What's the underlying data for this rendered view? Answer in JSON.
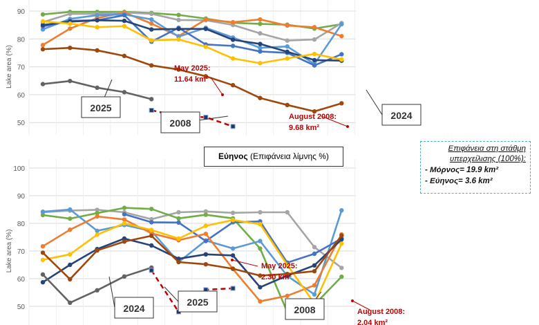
{
  "chart_data": [
    {
      "type": "line",
      "title": "",
      "ylabel": "Lake area (%)",
      "ylim": [
        45,
        93
      ],
      "yticks": [
        "90",
        "80",
        "70",
        "60",
        "50"
      ],
      "grid": true,
      "series": [
        {
          "color": "#70ad47",
          "values": [
            88.8,
            89.7,
            89.7,
            89.7,
            89.3,
            88.6,
            87.3,
            85.8,
            85.4,
            85.1,
            83.7,
            85.3
          ]
        },
        {
          "color": "#a5a5a5",
          "values": [
            86,
            89,
            89,
            89.5,
            89,
            86.8,
            86.7,
            85,
            82,
            79.4,
            79.8,
            85.7
          ]
        },
        {
          "color": "#ed7d31",
          "values": [
            77.8,
            83.7,
            87.5,
            89.5,
            85.5,
            81,
            87,
            86,
            87,
            84.8,
            84.2,
            81
          ]
        },
        {
          "color": "#5b9bd5",
          "values": [
            83.4,
            87.2,
            88.5,
            88.8,
            87,
            80.8,
            84,
            80.5,
            76.8,
            77.3,
            71,
            85.3
          ]
        },
        {
          "color": "#4472c4",
          "values": [
            84.5,
            86.5,
            86.7,
            88.5,
            79,
            84,
            78,
            77.5,
            75.5,
            75,
            70.5,
            74.5
          ]
        },
        {
          "color": "#264478",
          "values": [
            85,
            86.2,
            86.7,
            86.5,
            83.4,
            83.6,
            83.6,
            79.7,
            78.2,
            75.4,
            72.4,
            72.2
          ]
        },
        {
          "color": "#ffc000",
          "values": [
            86.3,
            85.5,
            84.2,
            84.6,
            79.5,
            79.8,
            77.2,
            73,
            71.3,
            73,
            74.6,
            72.6
          ]
        },
        {
          "color": "#9e480e",
          "values": [
            76.3,
            76.8,
            75.9,
            73.9,
            70.5,
            69,
            66.6,
            63.4,
            58.8,
            56.3,
            54,
            56.9
          ]
        },
        {
          "color": "#636363",
          "values": [
            63.8,
            64.9,
            62.5,
            60.9,
            58.4,
            null,
            null,
            null,
            null,
            null,
            null,
            null
          ]
        },
        {
          "color": "#c00000",
          "dashed": true,
          "values": [
            null,
            null,
            null,
            null,
            54.4,
            52.3,
            51.9,
            48.6,
            null,
            null,
            null,
            null
          ]
        }
      ],
      "annotations": [
        {
          "text1": "May 2025:",
          "text2": "11.64 km²"
        },
        {
          "text1": "August 2008:",
          "text2": "9.68 km²"
        }
      ],
      "year_labels": [
        "2025",
        "2008",
        "2024"
      ]
    },
    {
      "type": "line",
      "title": "Εύηνος (Επιφάνεια λίμνης %)",
      "title_bold": "Εύηνος",
      "title_rest": " (Επιφάνεια λίμνης %)",
      "ylabel": "Lake area (%)",
      "ylim": [
        45,
        100
      ],
      "yticks": [
        "100",
        "90",
        "80",
        "70",
        "60",
        "50"
      ],
      "grid": true,
      "series": [
        {
          "color": "#a5a5a5",
          "values": [
            84,
            84.6,
            84.9,
            84,
            81.5,
            84,
            84.3,
            83.8,
            84,
            84,
            71.4,
            63.9
          ]
        },
        {
          "color": "#70ad47",
          "values": [
            83,
            81.7,
            83.7,
            85.6,
            85.2,
            81.8,
            83.1,
            81.8,
            70.9,
            48,
            50.6,
            60.7
          ]
        },
        {
          "color": "#5b9bd5",
          "values": [
            84.2,
            85,
            77.3,
            79.4,
            77.2,
            66,
            73.8,
            70.9,
            73.6,
            61,
            54.3,
            84.7
          ]
        },
        {
          "color": "#4472c4",
          "values": [
            null,
            null,
            null,
            83.3,
            80.4,
            80.3,
            73.6,
            80.4,
            80.7,
            65.8,
            69,
            74.5
          ]
        },
        {
          "color": "#ed7d31",
          "values": [
            71.7,
            77.7,
            82.5,
            81.4,
            76.4,
            73.9,
            76.2,
            63.5,
            51.8,
            53.8,
            57.6,
            76
          ]
        },
        {
          "color": "#ffc000",
          "values": [
            66.8,
            68.8,
            75.9,
            80,
            77.6,
            74.5,
            79.1,
            81.2,
            79.7,
            65,
            51,
            72.7
          ]
        },
        {
          "color": "#264478",
          "values": [
            58.7,
            65,
            70.7,
            74.5,
            72,
            67.2,
            68.8,
            68.4,
            56.9,
            61.1,
            64.8,
            74.2
          ]
        },
        {
          "color": "#9e480e",
          "values": [
            69.4,
            59.8,
            70.2,
            73.4,
            75.5,
            66,
            65.2,
            63.6,
            61.1,
            61.7,
            62.7,
            75.6
          ]
        },
        {
          "color": "#636363",
          "values": [
            61.5,
            51.3,
            55.8,
            60.8,
            64,
            null,
            null,
            null,
            null,
            null,
            null,
            null
          ]
        },
        {
          "color": "#c00000",
          "dashed": true,
          "values": [
            null,
            null,
            null,
            null,
            63,
            48,
            56,
            56.5,
            null,
            null,
            null,
            null
          ]
        }
      ],
      "annotations": [
        {
          "text1": "May 2025:",
          "text2": "2.30 km²"
        },
        {
          "text1": "August 2008:",
          "text2": "2.04 km²"
        }
      ],
      "year_labels": [
        "2024",
        "2025",
        "2008"
      ]
    }
  ],
  "info": {
    "heading1": "Επιφάνεια στη στάθμη",
    "heading2": "υπερχείλισης (100%):",
    "items": [
      "-   Μόρνος= 19.9 km²",
      "-   Εύηνος= 3.6 km²"
    ]
  }
}
